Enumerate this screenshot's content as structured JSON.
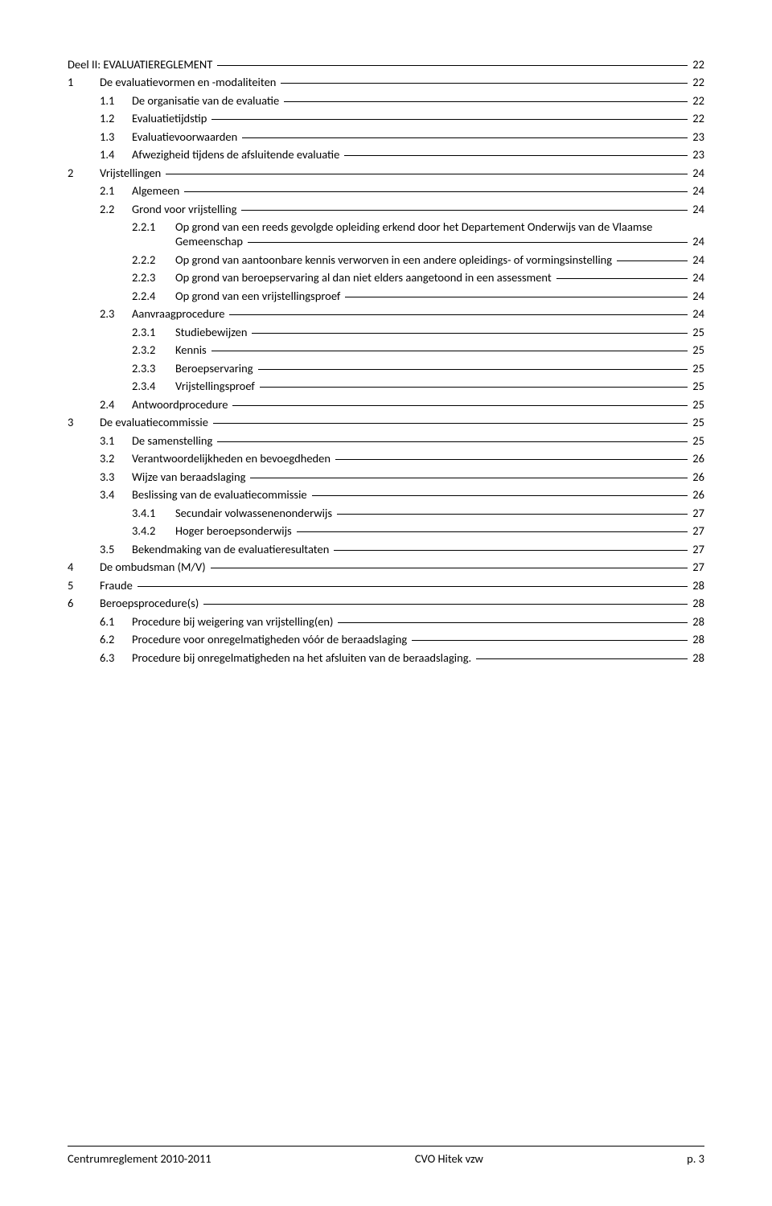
{
  "toc": [
    {
      "level": 0,
      "num": "Deel II: EVALUATIEREGLEMENT",
      "label": "",
      "page": "22",
      "noNumCol": true
    },
    {
      "level": 0,
      "num": "1",
      "label": "De evaluatievormen en -modaliteiten",
      "page": "22"
    },
    {
      "level": 1,
      "num": "1.1",
      "label": "De organisatie van de evaluatie",
      "page": "22"
    },
    {
      "level": 1,
      "num": "1.2",
      "label": "Evaluatietijdstip",
      "page": "22"
    },
    {
      "level": 1,
      "num": "1.3",
      "label": "Evaluatievoorwaarden",
      "page": "23"
    },
    {
      "level": 1,
      "num": "1.4",
      "label": "Afwezigheid tijdens de afsluitende evaluatie",
      "page": "23"
    },
    {
      "level": 0,
      "num": "2",
      "label": "Vrijstellingen",
      "page": "24"
    },
    {
      "level": 1,
      "num": "2.1",
      "label": "Algemeen",
      "page": "24"
    },
    {
      "level": 1,
      "num": "2.2",
      "label": "Grond voor vrijstelling",
      "page": "24"
    },
    {
      "level": 2,
      "num": "2.2.1",
      "label": "Op grond van een reeds gevolgde opleiding erkend door het Departement Onderwijs van de Vlaamse",
      "wrap": "Gemeenschap",
      "page": "24"
    },
    {
      "level": 2,
      "num": "2.2.2",
      "label": "Op grond van aantoonbare kennis verworven in een andere opleidings- of vormingsinstelling",
      "page": "24"
    },
    {
      "level": 2,
      "num": "2.2.3",
      "label": "Op grond van beroepservaring al dan niet elders aangetoond in een assessment",
      "page": "24"
    },
    {
      "level": 2,
      "num": "2.2.4",
      "label": "Op grond van een vrijstellingsproef",
      "page": "24"
    },
    {
      "level": 1,
      "num": "2.3",
      "label": "Aanvraagprocedure",
      "page": "24"
    },
    {
      "level": 2,
      "num": "2.3.1",
      "label": "Studiebewijzen",
      "page": "25"
    },
    {
      "level": 2,
      "num": "2.3.2",
      "label": "Kennis",
      "page": "25"
    },
    {
      "level": 2,
      "num": "2.3.3",
      "label": "Beroepservaring",
      "page": "25"
    },
    {
      "level": 2,
      "num": "2.3.4",
      "label": "Vrijstellingsproef",
      "page": "25"
    },
    {
      "level": 1,
      "num": "2.4",
      "label": "Antwoordprocedure",
      "page": "25"
    },
    {
      "level": 0,
      "num": "3",
      "label": "De evaluatiecommissie",
      "page": "25"
    },
    {
      "level": 1,
      "num": "3.1",
      "label": "De samenstelling",
      "page": "25"
    },
    {
      "level": 1,
      "num": "3.2",
      "label": "Verantwoordelijkheden en bevoegdheden",
      "page": "26"
    },
    {
      "level": 1,
      "num": "3.3",
      "label": "Wijze van beraadslaging",
      "page": "26"
    },
    {
      "level": 1,
      "num": "3.4",
      "label": "Beslissing van de evaluatiecommissie",
      "page": "26"
    },
    {
      "level": 2,
      "num": "3.4.1",
      "label": "Secundair volwassenenonderwijs",
      "page": "27"
    },
    {
      "level": 2,
      "num": "3.4.2",
      "label": "Hoger beroepsonderwijs",
      "page": "27"
    },
    {
      "level": 1,
      "num": "3.5",
      "label": "Bekendmaking van de evaluatieresultaten",
      "page": "27"
    },
    {
      "level": 0,
      "num": "4",
      "label": "De ombudsman (M/V)",
      "page": "27"
    },
    {
      "level": 0,
      "num": "5",
      "label": "Fraude",
      "page": "28"
    },
    {
      "level": 0,
      "num": "6",
      "label": "Beroepsprocedure(s)",
      "page": "28"
    },
    {
      "level": 1,
      "num": "6.1",
      "label": "Procedure bij weigering van vrijstelling(en)",
      "page": "28"
    },
    {
      "level": 1,
      "num": "6.2",
      "label": "Procedure voor onregelmatigheden vóór de beraadslaging",
      "page": "28"
    },
    {
      "level": 1,
      "num": "6.3",
      "label": "Procedure bij onregelmatigheden na het afsluiten van de beraadslaging.",
      "page": "28"
    }
  ],
  "footer": {
    "left": "Centrumreglement 2010-2011",
    "center": "CVO Hitek vzw",
    "right": "p. 3"
  }
}
